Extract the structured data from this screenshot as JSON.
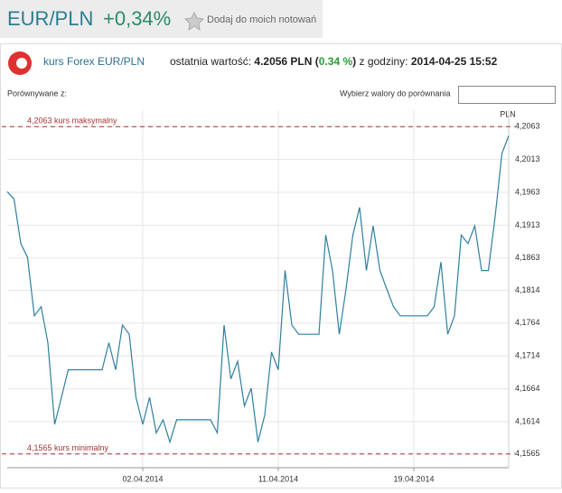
{
  "header": {
    "symbol": "EUR/PLN",
    "change": "+0,34%",
    "add_button": "Dodaj do moich notowań"
  },
  "info": {
    "source": "kurs Forex EUR/PLN",
    "last_label": "ostatnia wartość:",
    "last_value": "4.2056 PLN",
    "paren_open": "(",
    "pct": "0.34 %",
    "paren_close": ")",
    "time_label": "z godziny:",
    "time": "2014-04-25 15:52"
  },
  "compare": {
    "label": "Porównywane z:",
    "select_label": "Wybierz walory do porównania"
  },
  "chart_data": {
    "type": "line",
    "y_axis_label": "PLN",
    "categories": [
      null,
      null,
      null,
      null,
      null,
      null,
      null,
      null,
      null,
      null,
      null,
      null,
      null,
      null,
      null,
      null,
      null,
      null,
      null,
      null,
      "02.04.2014",
      null,
      null,
      null,
      null,
      null,
      null,
      null,
      null,
      null,
      null,
      null,
      null,
      null,
      null,
      null,
      null,
      null,
      null,
      null,
      "11.04.2014",
      null,
      null,
      null,
      null,
      null,
      null,
      null,
      null,
      null,
      null,
      null,
      null,
      null,
      null,
      null,
      null,
      null,
      null,
      null,
      "19.04.2014",
      null,
      null,
      null,
      null,
      null,
      null,
      null,
      null,
      null,
      null,
      null,
      null,
      null,
      null
    ],
    "series": [
      {
        "name": "EUR/PLN",
        "color": "#2f7fa0",
        "values": [
          4.1964,
          4.1953,
          4.1885,
          4.1864,
          4.1775,
          4.1789,
          4.1734,
          4.161,
          4.1651,
          4.1693,
          4.1693,
          4.1693,
          4.1693,
          4.1693,
          4.1693,
          4.1734,
          4.1693,
          4.1761,
          4.1747,
          4.1651,
          4.161,
          4.1651,
          4.1597,
          4.1617,
          4.1583,
          4.1617,
          4.1617,
          4.1617,
          4.1617,
          4.1617,
          4.1617,
          4.1597,
          4.1761,
          4.1679,
          4.1706,
          4.1638,
          4.1665,
          4.1583,
          4.1624,
          4.172,
          4.1693,
          4.1844,
          4.1761,
          4.1747,
          4.1747,
          4.1747,
          4.1747,
          4.1898,
          4.1844,
          4.1747,
          4.1816,
          4.1898,
          4.194,
          4.1844,
          4.1912,
          4.1844,
          4.1816,
          4.1789,
          4.1775,
          4.1775,
          4.1775,
          4.1775,
          4.1775,
          4.1789,
          4.1857,
          4.1747,
          4.1775,
          4.1898,
          4.1885,
          4.1912,
          4.1844,
          4.1844,
          4.1926,
          4.2022,
          4.2049
        ]
      }
    ],
    "ylim": [
      4.1544,
      4.2088
    ],
    "yticks": [
      {
        "value": 4.1565,
        "label": "4,1565"
      },
      {
        "value": 4.1614,
        "label": "4,1614"
      },
      {
        "value": 4.1664,
        "label": "4,1664"
      },
      {
        "value": 4.1714,
        "label": "4,1714"
      },
      {
        "value": 4.1764,
        "label": "4,1764"
      },
      {
        "value": 4.1814,
        "label": "4,1814"
      },
      {
        "value": 4.1863,
        "label": "4,1863"
      },
      {
        "value": 4.1913,
        "label": "4,1913"
      },
      {
        "value": 4.1963,
        "label": "4,1963"
      },
      {
        "value": 4.2013,
        "label": "4,2013"
      },
      {
        "value": 4.2063,
        "label": "4,2063"
      }
    ],
    "reference_lines": [
      {
        "value": 4.2063,
        "label": "4,2063 kurs maksymalny",
        "color": "#a83232"
      },
      {
        "value": 4.1565,
        "label": "4,1565 kurs minimalny",
        "color": "#a83232"
      }
    ],
    "grid": true
  }
}
